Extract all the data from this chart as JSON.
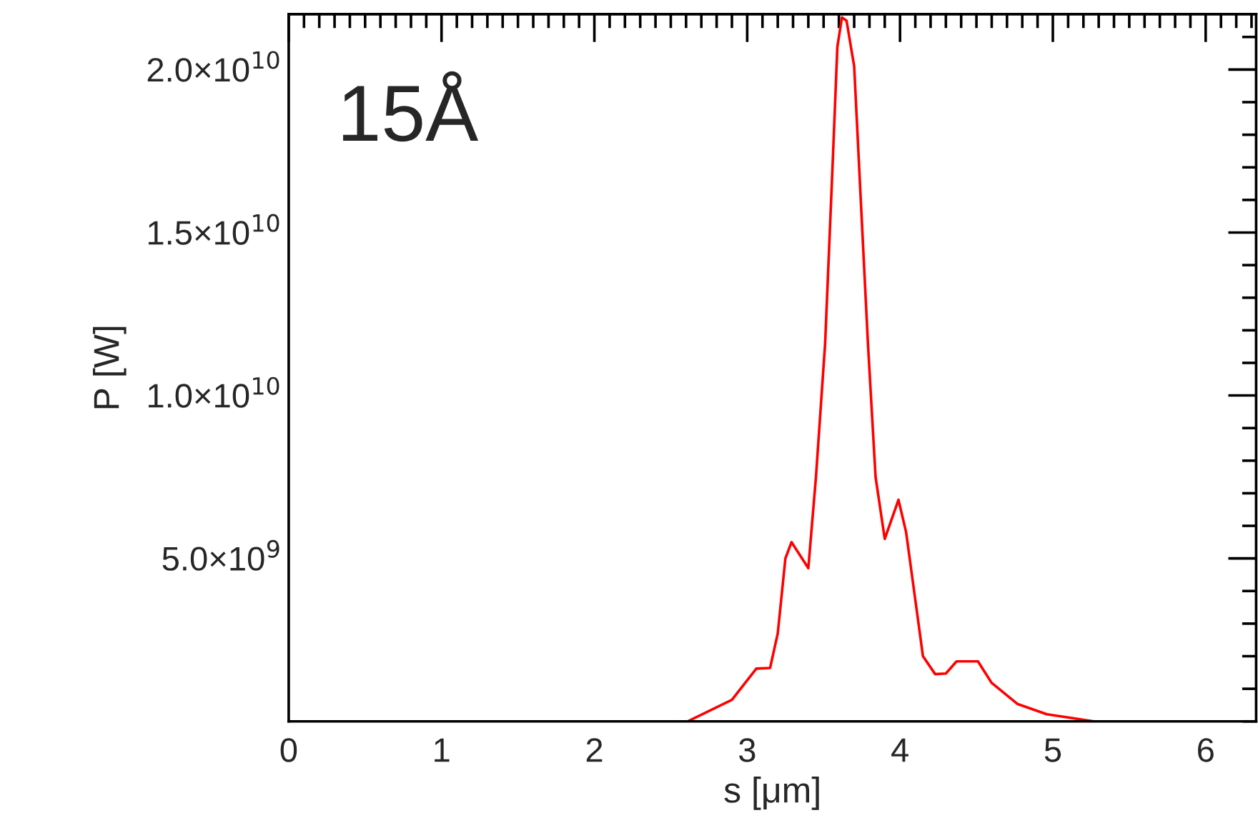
{
  "chart_data": {
    "type": "line",
    "xlabel": "s [μm]",
    "ylabel": "P [W]",
    "annotations": [
      "15Å"
    ],
    "x": [
      2.61,
      2.9,
      3.06,
      3.15,
      3.2,
      3.25,
      3.29,
      3.4,
      3.45,
      3.51,
      3.56,
      3.59,
      3.62,
      3.65,
      3.7,
      3.74,
      3.79,
      3.84,
      3.9,
      3.99,
      4.04,
      4.15,
      4.23,
      4.3,
      4.37,
      4.51,
      4.6,
      4.77,
      4.96,
      5.27
    ],
    "series": [
      {
        "color": "#ff0000",
        "values": [
          0,
          660000000.0,
          1620000000.0,
          1640000000.0,
          2700000000.0,
          5000000000.0,
          5500000000.0,
          4700000000.0,
          7500000000.0,
          11600000000.0,
          17200000000.0,
          20700000000.0,
          21600000000.0,
          21500000000.0,
          20100000000.0,
          16300000000.0,
          11600000000.0,
          7500000000.0,
          5600000000.0,
          6800000000.0,
          5800000000.0,
          2000000000.0,
          1450000000.0,
          1470000000.0,
          1840000000.0,
          1840000000.0,
          1180000000.0,
          530000000.0,
          220000000.0,
          0
        ]
      }
    ],
    "xlim": [
      0,
      6.33
    ],
    "ylim": [
      0,
      21700000000.0
    ],
    "xticks": [
      0,
      1,
      2,
      3,
      4,
      5,
      6
    ],
    "yticks": [
      {
        "value": 5000000000.0,
        "label": "5.0×10$^{9}$"
      },
      {
        "value": 10000000000.0,
        "label": "1.0×10$^{10}$"
      },
      {
        "value": 15000000000.0,
        "label": "1.5×10$^{10}$"
      },
      {
        "value": 20000000000.0,
        "label": "2.0×10$^{10}$"
      }
    ],
    "grid": false,
    "legend": false,
    "marker": "none",
    "line_style": "solid"
  }
}
